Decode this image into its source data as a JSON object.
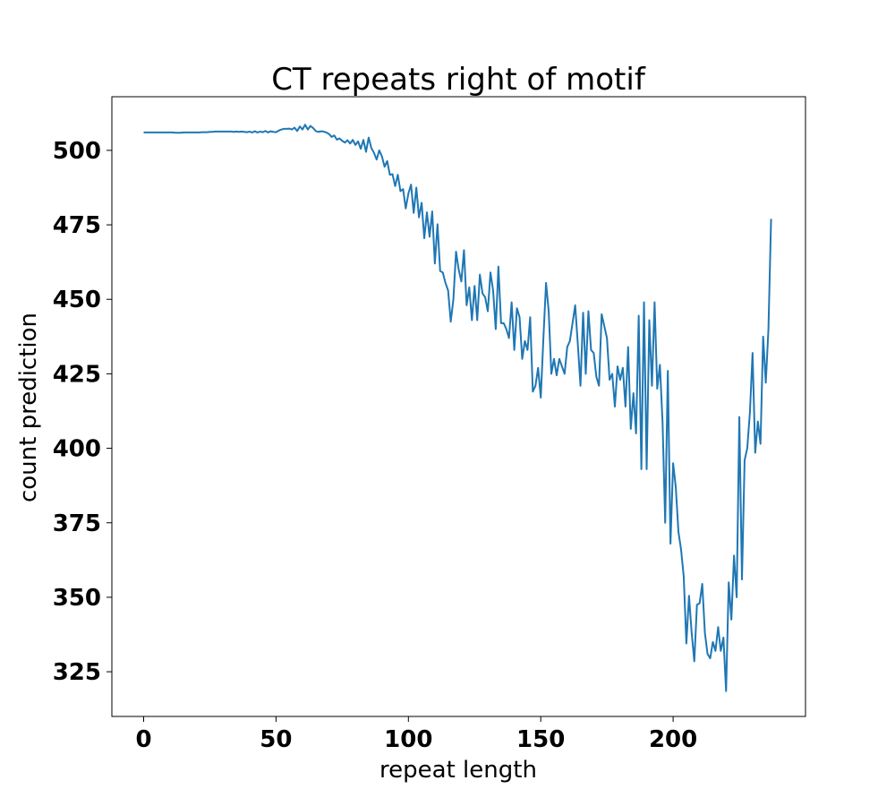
{
  "chart_data": {
    "type": "line",
    "title": "CT repeats right of motif",
    "xlabel": "repeat length",
    "ylabel": "count prediction",
    "xlim": [
      -12,
      250
    ],
    "ylim": [
      310,
      518
    ],
    "xticks": [
      0,
      50,
      100,
      150,
      200
    ],
    "yticks": [
      325,
      350,
      375,
      400,
      425,
      450,
      475,
      500
    ],
    "grid": false,
    "color": "#1f77b4",
    "series": [
      {
        "x": [
          0,
          1,
          2,
          3,
          4,
          5,
          6,
          7,
          8,
          9,
          10,
          11,
          12,
          13,
          14,
          15,
          16,
          17,
          18,
          19,
          20,
          21,
          22,
          23,
          24,
          25,
          26,
          27,
          28,
          29,
          30,
          31,
          32,
          33,
          34,
          35,
          36,
          37,
          38,
          39,
          40,
          41,
          42,
          43,
          44,
          45,
          46,
          47,
          48,
          49,
          50,
          51,
          52,
          53,
          54,
          55,
          56,
          57,
          58,
          59,
          60,
          61,
          62,
          63,
          64,
          65,
          66,
          67,
          68,
          69,
          70,
          71,
          72,
          73,
          74,
          75,
          76,
          77,
          78,
          79,
          80,
          81,
          82,
          83,
          84,
          85,
          86,
          87,
          88,
          89,
          90,
          91,
          92,
          93,
          94,
          95,
          96,
          97,
          98,
          99,
          100,
          101,
          102,
          103,
          104,
          105,
          106,
          107,
          108,
          109,
          110,
          111,
          112,
          113,
          114,
          115,
          116,
          117,
          118,
          119,
          120,
          121,
          122,
          123,
          124,
          125,
          126,
          127,
          128,
          129,
          130,
          131,
          132,
          133,
          134,
          135,
          136,
          137,
          138,
          139,
          140,
          141,
          142,
          143,
          144,
          145,
          146,
          147,
          148,
          149,
          150,
          151,
          152,
          153,
          154,
          155,
          156,
          157,
          158,
          159,
          160,
          161,
          162,
          163,
          164,
          165,
          166,
          167,
          168,
          169,
          170,
          171,
          172,
          173,
          174,
          175,
          176,
          177,
          178,
          179,
          180,
          181,
          182,
          183,
          184,
          185,
          186,
          187,
          188,
          189,
          190,
          191,
          192,
          193,
          194,
          195,
          196,
          197,
          198,
          199,
          200,
          201,
          202,
          203,
          204,
          205,
          206,
          207,
          208,
          209,
          210,
          211,
          212,
          213,
          214,
          215,
          216,
          217,
          218,
          219,
          220,
          221,
          222,
          223,
          224,
          225,
          226,
          227,
          228,
          229,
          230,
          231,
          232,
          233,
          234,
          235,
          236,
          237
        ],
        "values": [
          506,
          506,
          506,
          506,
          506,
          506,
          506,
          506,
          506,
          506,
          506,
          506,
          505.9,
          505.9,
          505.9,
          506,
          506,
          506,
          506,
          506,
          506,
          506,
          506.1,
          506.1,
          506.1,
          506.2,
          506.2,
          506.3,
          506.3,
          506.3,
          506.3,
          506.3,
          506.3,
          506.3,
          506.2,
          506.3,
          506.2,
          506.3,
          506.2,
          506.1,
          506.3,
          506.0,
          506.4,
          506.0,
          506.3,
          506.1,
          506.5,
          506.0,
          506.4,
          506.2,
          506.1,
          506.6,
          507.0,
          507.2,
          507.2,
          507.3,
          507.0,
          507.6,
          506.5,
          508.0,
          507.0,
          508.6,
          507.0,
          508.2,
          507.5,
          506.5,
          506.2,
          506.4,
          506.3,
          506.0,
          505.5,
          504.5,
          505.0,
          503.6,
          504.0,
          503.2,
          502.6,
          503.4,
          502.3,
          503.5,
          501.8,
          503.0,
          500.5,
          503.5,
          499.5,
          504.3,
          500.8,
          499.2,
          496.9,
          500.0,
          498.0,
          494.5,
          496.4,
          491.8,
          492.0,
          488.0,
          491.8,
          486.3,
          487.0,
          480.5,
          485.5,
          488.5,
          479.0,
          487.5,
          477.5,
          482.4,
          470.5,
          479.2,
          471.0,
          479.5,
          462.0,
          475.2,
          459.5,
          459.0,
          455.5,
          453.0,
          442.5,
          450.0,
          466.0,
          460.0,
          456.0,
          466.5,
          448.0,
          454.0,
          443.0,
          454.5,
          443.0,
          458.3,
          452.0,
          450.7,
          446.0,
          459.0,
          453.0,
          440.0,
          461.0,
          442.0,
          442.0,
          440.0,
          437.0,
          449.0,
          433.0,
          447.0,
          444.0,
          430.0,
          436.0,
          433.0,
          444.0,
          419.0,
          421.0,
          427.0,
          417.0,
          437.0,
          455.5,
          446.0,
          425.0,
          430.0,
          424.5,
          430.0,
          427.5,
          425.0,
          434.0,
          436.0,
          442.0,
          448.0,
          435.0,
          421.0,
          445.5,
          425.0,
          446.0,
          433.0,
          432.0,
          424.0,
          421.0,
          445.0,
          441.0,
          437.0,
          423.0,
          425.0,
          414.0,
          427.5,
          423.0,
          427.0,
          414.0,
          434.0,
          406.5,
          418.5,
          405.0,
          444.5,
          393.0,
          449.0,
          393.0,
          443.0,
          421.0,
          449.0,
          420.0,
          428.0,
          409.0,
          375.0,
          426.0,
          368.0,
          395.0,
          387.0,
          372.0,
          366.0,
          357.0,
          334.5,
          350.5,
          338.0,
          328.5,
          347.5,
          348.0,
          354.5,
          338.0,
          331.0,
          329.5,
          335.0,
          332.0,
          340.0,
          332.0,
          336.5,
          318.5,
          355.0,
          342.5,
          364.0,
          350.0,
          410.5,
          356.0,
          396.0,
          400.0,
          412.0,
          432.0,
          398.5,
          409.0,
          401.5,
          437.5,
          422.0,
          440.0,
          477.0
        ]
      }
    ]
  }
}
